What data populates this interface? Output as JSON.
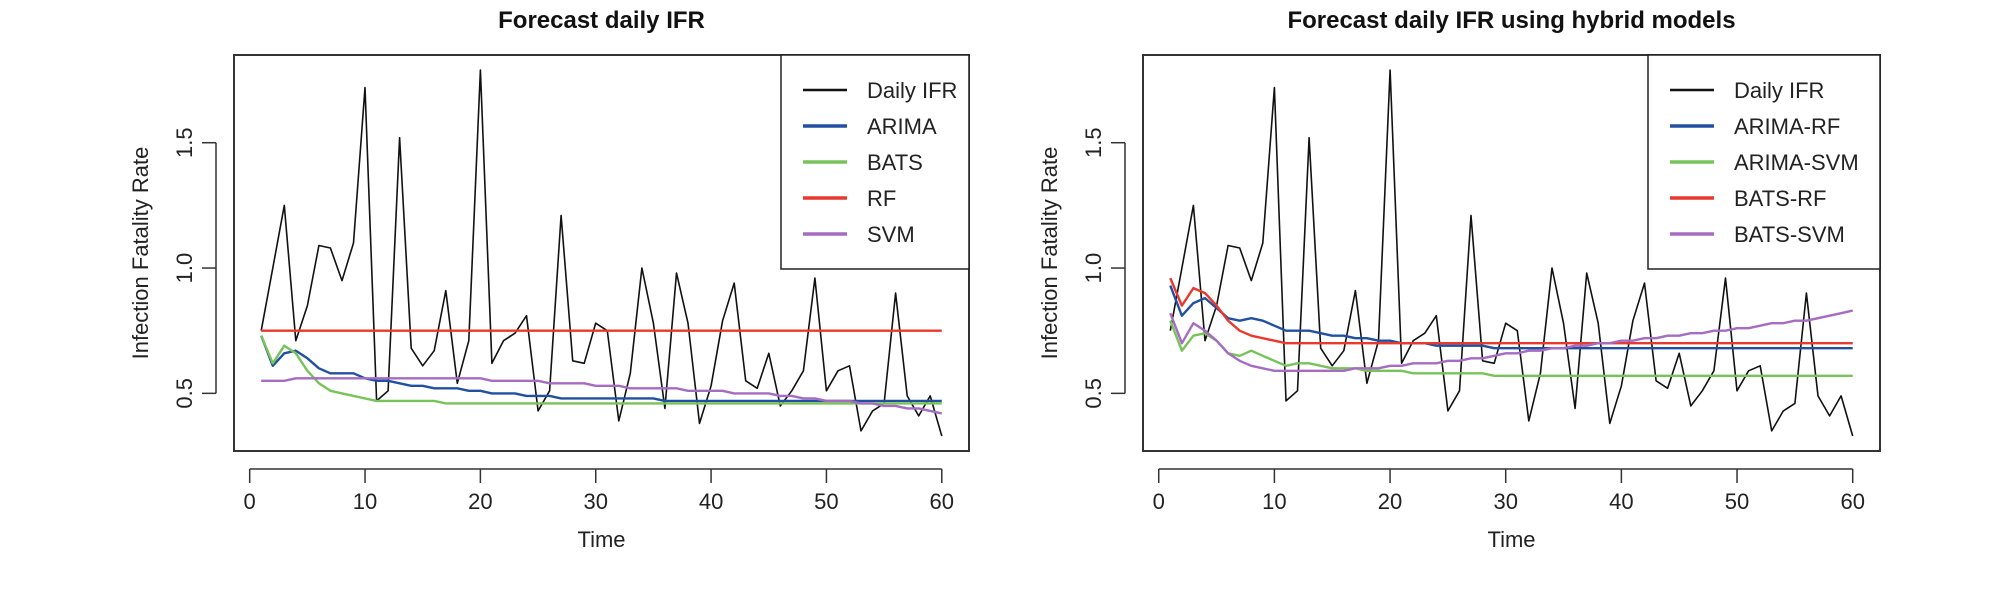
{
  "chart_data": [
    {
      "type": "line",
      "title": "Forecast daily IFR",
      "xlabel": "Time",
      "ylabel": "Infection Fatality Rate",
      "xlim": [
        1,
        60
      ],
      "ylim": [
        0.27,
        1.85
      ],
      "xticks": [
        0,
        10,
        20,
        30,
        40,
        50,
        60
      ],
      "yticks": [
        "0.5",
        "1.0",
        "1.5"
      ],
      "grid": false,
      "legend_position": "top-right",
      "series": [
        {
          "name": "Daily IFR",
          "color": "#111111",
          "values": [
            0.75,
            1.0,
            1.25,
            0.71,
            0.85,
            1.09,
            1.08,
            0.95,
            1.1,
            1.72,
            0.47,
            0.51,
            1.52,
            0.68,
            0.61,
            0.67,
            0.91,
            0.54,
            0.71,
            1.79,
            0.62,
            0.71,
            0.74,
            0.81,
            0.43,
            0.51,
            1.21,
            0.63,
            0.62,
            0.78,
            0.75,
            0.39,
            0.58,
            1.0,
            0.78,
            0.44,
            0.98,
            0.78,
            0.38,
            0.53,
            0.79,
            0.94,
            0.55,
            0.52,
            0.66,
            0.45,
            0.51,
            0.59,
            0.96,
            0.51,
            0.59,
            0.61,
            0.35,
            0.43,
            0.46,
            0.9,
            0.49,
            0.41,
            0.49,
            0.33
          ]
        },
        {
          "name": "ARIMA",
          "color": "#2150a0",
          "values": [
            0.73,
            0.61,
            0.66,
            0.67,
            0.64,
            0.6,
            0.58,
            0.58,
            0.58,
            0.56,
            0.55,
            0.55,
            0.54,
            0.53,
            0.53,
            0.52,
            0.52,
            0.52,
            0.51,
            0.51,
            0.5,
            0.5,
            0.5,
            0.49,
            0.49,
            0.49,
            0.48,
            0.48,
            0.48,
            0.48,
            0.48,
            0.48,
            0.48,
            0.48,
            0.48,
            0.47,
            0.47,
            0.47,
            0.47,
            0.47,
            0.47,
            0.47,
            0.47,
            0.47,
            0.47,
            0.47,
            0.47,
            0.47,
            0.47,
            0.47,
            0.47,
            0.47,
            0.47,
            0.47,
            0.47,
            0.47,
            0.47,
            0.47,
            0.47,
            0.47
          ]
        },
        {
          "name": "BATS",
          "color": "#77c35a",
          "values": [
            0.73,
            0.62,
            0.69,
            0.66,
            0.59,
            0.54,
            0.51,
            0.5,
            0.49,
            0.48,
            0.47,
            0.47,
            0.47,
            0.47,
            0.47,
            0.47,
            0.46,
            0.46,
            0.46,
            0.46,
            0.46,
            0.46,
            0.46,
            0.46,
            0.46,
            0.46,
            0.46,
            0.46,
            0.46,
            0.46,
            0.46,
            0.46,
            0.46,
            0.46,
            0.46,
            0.46,
            0.46,
            0.46,
            0.46,
            0.46,
            0.46,
            0.46,
            0.46,
            0.46,
            0.46,
            0.46,
            0.46,
            0.46,
            0.46,
            0.46,
            0.46,
            0.46,
            0.46,
            0.46,
            0.46,
            0.46,
            0.46,
            0.46,
            0.46,
            0.46
          ]
        },
        {
          "name": "RF",
          "color": "#e8392e",
          "values": [
            0.75,
            0.75,
            0.75,
            0.75,
            0.75,
            0.75,
            0.75,
            0.75,
            0.75,
            0.75,
            0.75,
            0.75,
            0.75,
            0.75,
            0.75,
            0.75,
            0.75,
            0.75,
            0.75,
            0.75,
            0.75,
            0.75,
            0.75,
            0.75,
            0.75,
            0.75,
            0.75,
            0.75,
            0.75,
            0.75,
            0.75,
            0.75,
            0.75,
            0.75,
            0.75,
            0.75,
            0.75,
            0.75,
            0.75,
            0.75,
            0.75,
            0.75,
            0.75,
            0.75,
            0.75,
            0.75,
            0.75,
            0.75,
            0.75,
            0.75,
            0.75,
            0.75,
            0.75,
            0.75,
            0.75,
            0.75,
            0.75,
            0.75,
            0.75,
            0.75
          ]
        },
        {
          "name": "SVM",
          "color": "#a56cc1",
          "values": [
            0.55,
            0.55,
            0.55,
            0.56,
            0.56,
            0.56,
            0.56,
            0.56,
            0.56,
            0.56,
            0.56,
            0.56,
            0.56,
            0.56,
            0.56,
            0.56,
            0.56,
            0.56,
            0.56,
            0.56,
            0.55,
            0.55,
            0.55,
            0.55,
            0.55,
            0.54,
            0.54,
            0.54,
            0.54,
            0.53,
            0.53,
            0.53,
            0.52,
            0.52,
            0.52,
            0.52,
            0.52,
            0.51,
            0.51,
            0.51,
            0.51,
            0.5,
            0.5,
            0.5,
            0.5,
            0.49,
            0.49,
            0.48,
            0.48,
            0.47,
            0.47,
            0.47,
            0.46,
            0.46,
            0.45,
            0.45,
            0.44,
            0.44,
            0.43,
            0.42
          ]
        }
      ]
    },
    {
      "type": "line",
      "title": "Forecast daily IFR using hybrid models",
      "xlabel": "Time",
      "ylabel": "Infection Fatality Rate",
      "xlim": [
        1,
        60
      ],
      "ylim": [
        0.27,
        1.85
      ],
      "xticks": [
        0,
        10,
        20,
        30,
        40,
        50,
        60
      ],
      "yticks": [
        "0.5",
        "1.0",
        "1.5"
      ],
      "grid": false,
      "legend_position": "top-right",
      "series": [
        {
          "name": "Daily IFR",
          "color": "#111111",
          "values": [
            0.75,
            1.0,
            1.25,
            0.71,
            0.85,
            1.09,
            1.08,
            0.95,
            1.1,
            1.72,
            0.47,
            0.51,
            1.52,
            0.68,
            0.61,
            0.67,
            0.91,
            0.54,
            0.71,
            1.79,
            0.62,
            0.71,
            0.74,
            0.81,
            0.43,
            0.51,
            1.21,
            0.63,
            0.62,
            0.78,
            0.75,
            0.39,
            0.58,
            1.0,
            0.78,
            0.44,
            0.98,
            0.78,
            0.38,
            0.53,
            0.79,
            0.94,
            0.55,
            0.52,
            0.66,
            0.45,
            0.51,
            0.59,
            0.96,
            0.51,
            0.59,
            0.61,
            0.35,
            0.43,
            0.46,
            0.9,
            0.49,
            0.41,
            0.49,
            0.33
          ]
        },
        {
          "name": "ARIMA-RF",
          "color": "#2150a0",
          "values": [
            0.93,
            0.81,
            0.86,
            0.88,
            0.84,
            0.8,
            0.79,
            0.8,
            0.79,
            0.77,
            0.75,
            0.75,
            0.75,
            0.74,
            0.73,
            0.73,
            0.72,
            0.72,
            0.71,
            0.71,
            0.7,
            0.7,
            0.7,
            0.69,
            0.69,
            0.69,
            0.69,
            0.69,
            0.68,
            0.68,
            0.68,
            0.68,
            0.68,
            0.68,
            0.68,
            0.68,
            0.68,
            0.68,
            0.68,
            0.68,
            0.68,
            0.68,
            0.68,
            0.68,
            0.68,
            0.68,
            0.68,
            0.68,
            0.68,
            0.68,
            0.68,
            0.68,
            0.68,
            0.68,
            0.68,
            0.68,
            0.68,
            0.68,
            0.68,
            0.68
          ]
        },
        {
          "name": "ARIMA-SVM",
          "color": "#77c35a",
          "values": [
            0.79,
            0.67,
            0.73,
            0.74,
            0.71,
            0.66,
            0.65,
            0.67,
            0.65,
            0.63,
            0.61,
            0.62,
            0.62,
            0.61,
            0.6,
            0.6,
            0.6,
            0.59,
            0.59,
            0.59,
            0.59,
            0.58,
            0.58,
            0.58,
            0.58,
            0.58,
            0.58,
            0.58,
            0.57,
            0.57,
            0.57,
            0.57,
            0.57,
            0.57,
            0.57,
            0.57,
            0.57,
            0.57,
            0.57,
            0.57,
            0.57,
            0.57,
            0.57,
            0.57,
            0.57,
            0.57,
            0.57,
            0.57,
            0.57,
            0.57,
            0.57,
            0.57,
            0.57,
            0.57,
            0.57,
            0.57,
            0.57,
            0.57,
            0.57,
            0.57
          ]
        },
        {
          "name": "BATS-RF",
          "color": "#e8392e",
          "values": [
            0.96,
            0.85,
            0.92,
            0.9,
            0.85,
            0.79,
            0.75,
            0.73,
            0.72,
            0.71,
            0.7,
            0.7,
            0.7,
            0.7,
            0.7,
            0.7,
            0.7,
            0.7,
            0.7,
            0.7,
            0.7,
            0.7,
            0.7,
            0.7,
            0.7,
            0.7,
            0.7,
            0.7,
            0.7,
            0.7,
            0.7,
            0.7,
            0.7,
            0.7,
            0.7,
            0.7,
            0.7,
            0.7,
            0.7,
            0.7,
            0.7,
            0.7,
            0.7,
            0.7,
            0.7,
            0.7,
            0.7,
            0.7,
            0.7,
            0.7,
            0.7,
            0.7,
            0.7,
            0.7,
            0.7,
            0.7,
            0.7,
            0.7,
            0.7,
            0.7
          ]
        },
        {
          "name": "BATS-SVM",
          "color": "#a56cc1",
          "values": [
            0.82,
            0.7,
            0.78,
            0.75,
            0.71,
            0.66,
            0.63,
            0.61,
            0.6,
            0.59,
            0.59,
            0.59,
            0.59,
            0.59,
            0.59,
            0.59,
            0.6,
            0.6,
            0.6,
            0.61,
            0.61,
            0.62,
            0.62,
            0.62,
            0.63,
            0.63,
            0.64,
            0.64,
            0.65,
            0.66,
            0.66,
            0.67,
            0.67,
            0.68,
            0.68,
            0.69,
            0.69,
            0.7,
            0.7,
            0.71,
            0.71,
            0.72,
            0.72,
            0.73,
            0.73,
            0.74,
            0.74,
            0.75,
            0.75,
            0.76,
            0.76,
            0.77,
            0.78,
            0.78,
            0.79,
            0.79,
            0.8,
            0.81,
            0.82,
            0.83
          ]
        }
      ]
    }
  ]
}
